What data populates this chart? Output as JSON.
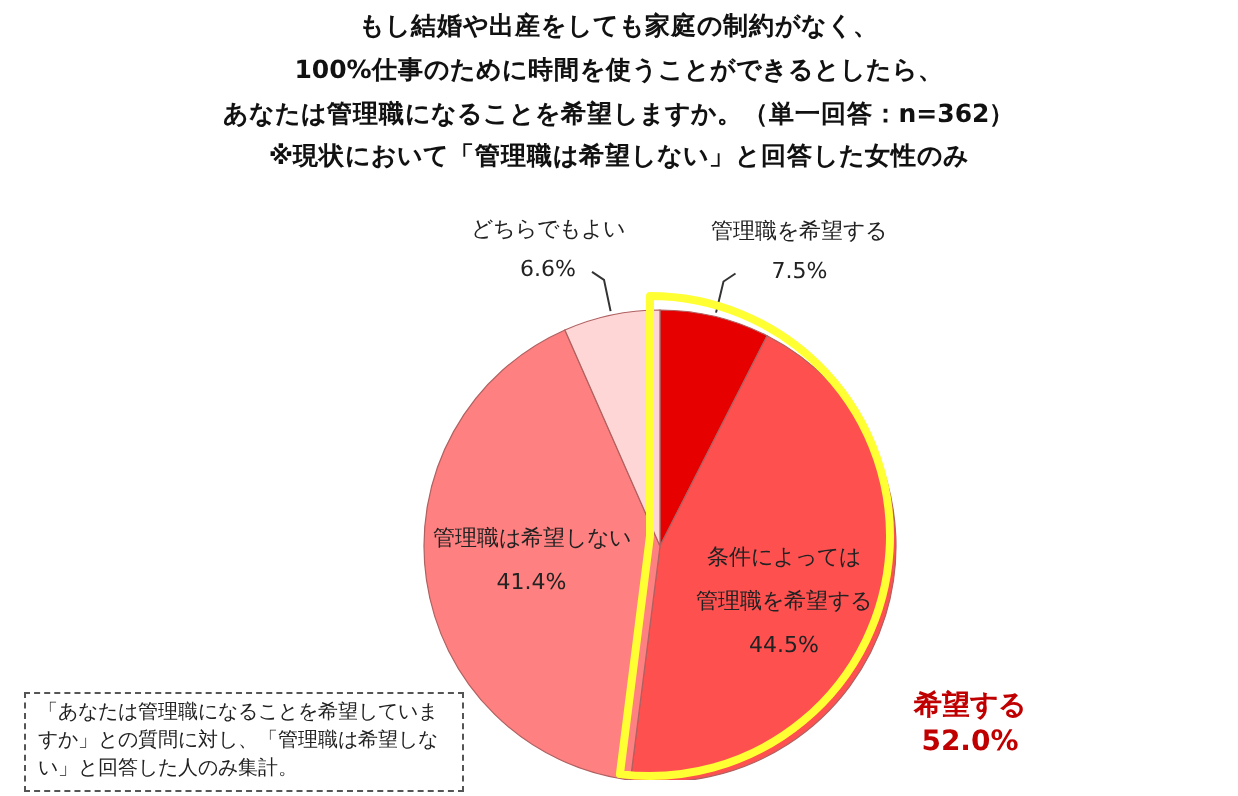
{
  "chart_data": {
    "type": "pie",
    "title": "もし結婚や出産をしても家庭の制約がなく、100%仕事のために時間を使うことができるとしたら、あなたは管理職になることを希望しますか。（単一回答：n=362）",
    "subtitle": "※現状において「管理職は希望しない」と回答した女性のみ",
    "categories": [
      "管理職を希望する",
      "条件によっては管理職を希望する",
      "管理職は希望しない",
      "どちらでもよい"
    ],
    "values": [
      7.5,
      44.5,
      41.4,
      6.6
    ],
    "value_labels": [
      "7.5%",
      "44.5%",
      "41.4%",
      "6.6%"
    ],
    "colors": [
      "#e60000",
      "#ff5050",
      "#ff8080",
      "#ffd6d6"
    ],
    "annotations": [
      "「あなたは管理職になることを希望していますか」との質問に対し、「管理職は希望しない」と回答した人のみ集計。",
      "希望する\n52.0%"
    ]
  }
}
